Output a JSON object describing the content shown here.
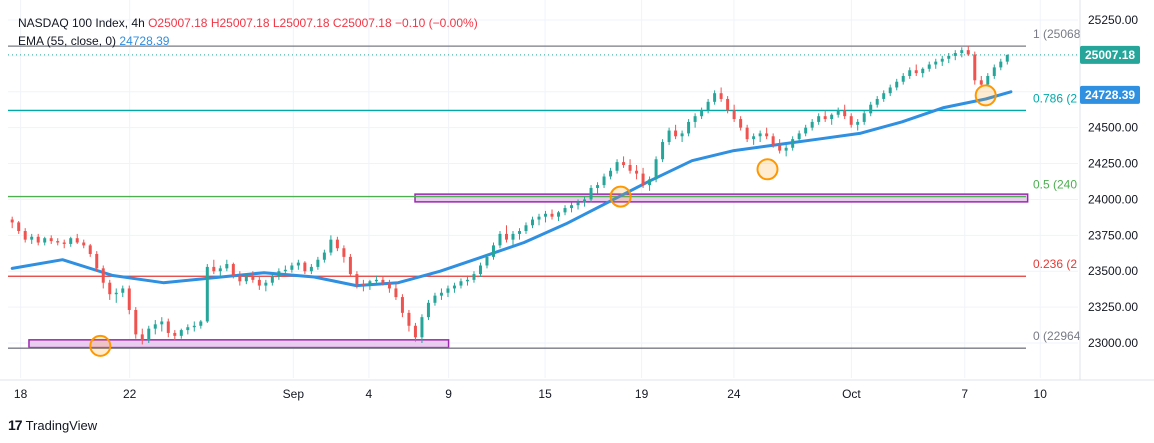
{
  "legend": {
    "title": "NASDAQ 100 Index, 4h",
    "ohlc": "O25007.18 H25007.18 L25007.18 C25007.18 −0.10 (−0.00%)",
    "ema_label": "EMA (55, close, 0)",
    "ema_value": "24728.39"
  },
  "branding": {
    "logo_glyph": "17",
    "name": "TradingView"
  },
  "colors": {
    "up": "#26a69a",
    "down": "#ef5350",
    "ema": "#2f8fe0",
    "fib_1": "#787b86",
    "fib_0786": "#00a8a8",
    "fib_05": "#4caf50",
    "fib_0236": "#e53935",
    "fib_0": "#787b86",
    "zone_fill": "#e9cdef",
    "zone_stroke": "#9c27b0",
    "circle": "#ff9800"
  },
  "chart_data": {
    "type": "candlestick",
    "symbol": "NASDAQ 100 Index",
    "timeframe": "4h",
    "ylim": [
      22750,
      25300
    ],
    "y_ticks": [
      "25250.00",
      "25000.00",
      "24750.00",
      "24500.00",
      "24250.00",
      "24000.00",
      "23750.00",
      "23500.00",
      "23250.00",
      "23000.00"
    ],
    "x_ticks": [
      {
        "label": "18",
        "t": 2
      },
      {
        "label": "22",
        "t": 28
      },
      {
        "label": "Sep",
        "t": 67
      },
      {
        "label": "4",
        "t": 85
      },
      {
        "label": "9",
        "t": 104
      },
      {
        "label": "15",
        "t": 127
      },
      {
        "label": "19",
        "t": 150
      },
      {
        "label": "24",
        "t": 172
      },
      {
        "label": "Oct",
        "t": 200
      },
      {
        "label": "7",
        "t": 227
      },
      {
        "label": "10",
        "t": 245
      }
    ],
    "t_range": [
      -1,
      254
    ],
    "fib_levels": [
      {
        "ratio": "1",
        "value": 25068,
        "label": "1 (25068"
      },
      {
        "ratio": "0.786",
        "value": 24620,
        "label": "0.786 (2"
      },
      {
        "ratio": "0.5",
        "value": 24020,
        "label": "0.5 (240"
      },
      {
        "ratio": "0.236",
        "value": 23465,
        "label": "0.236 (2"
      },
      {
        "ratio": "0",
        "value": 22964,
        "label": "0 (22964"
      }
    ],
    "support_zones": [
      {
        "t_start": 4,
        "t_end": 104,
        "low": 22975,
        "high": 23015
      },
      {
        "t_start": 96,
        "t_end": 242,
        "low": 23990,
        "high": 24030
      }
    ],
    "highlight_circles": [
      {
        "t": 21,
        "value": 22980
      },
      {
        "t": 145,
        "value": 24020
      },
      {
        "t": 180,
        "value": 24210
      },
      {
        "t": 232,
        "value": 24725
      }
    ],
    "last_price": {
      "value": 25007.18,
      "label": "25007.18"
    },
    "ema_label": {
      "value": 24728.39,
      "label": "24728.39"
    },
    "ema_points": [
      [
        0,
        23520
      ],
      [
        12,
        23580
      ],
      [
        24,
        23470
      ],
      [
        36,
        23420
      ],
      [
        48,
        23455
      ],
      [
        60,
        23490
      ],
      [
        72,
        23460
      ],
      [
        82,
        23400
      ],
      [
        92,
        23420
      ],
      [
        102,
        23500
      ],
      [
        112,
        23600
      ],
      [
        122,
        23700
      ],
      [
        132,
        23830
      ],
      [
        142,
        23980
      ],
      [
        152,
        24130
      ],
      [
        162,
        24270
      ],
      [
        172,
        24340
      ],
      [
        182,
        24380
      ],
      [
        192,
        24420
      ],
      [
        202,
        24460
      ],
      [
        212,
        24540
      ],
      [
        222,
        24640
      ],
      [
        232,
        24700
      ],
      [
        238,
        24750
      ]
    ],
    "candles": [
      [
        23860,
        23880,
        23800,
        23840
      ],
      [
        23840,
        23850,
        23760,
        23780
      ],
      [
        23780,
        23800,
        23700,
        23720
      ],
      [
        23720,
        23760,
        23690,
        23740
      ],
      [
        23740,
        23760,
        23680,
        23700
      ],
      [
        23700,
        23740,
        23680,
        23730
      ],
      [
        23730,
        23750,
        23690,
        23710
      ],
      [
        23710,
        23730,
        23680,
        23700
      ],
      [
        23700,
        23720,
        23660,
        23690
      ],
      [
        23690,
        23740,
        23670,
        23730
      ],
      [
        23730,
        23760,
        23690,
        23700
      ],
      [
        23700,
        23720,
        23660,
        23680
      ],
      [
        23680,
        23690,
        23600,
        23620
      ],
      [
        23620,
        23640,
        23500,
        23520
      ],
      [
        23520,
        23540,
        23380,
        23420
      ],
      [
        23420,
        23440,
        23300,
        23340
      ],
      [
        23340,
        23380,
        23280,
        23350
      ],
      [
        23350,
        23400,
        23320,
        23380
      ],
      [
        23380,
        23400,
        23200,
        23230
      ],
      [
        23230,
        23250,
        23030,
        23060
      ],
      [
        23060,
        23100,
        22990,
        23020
      ],
      [
        23020,
        23120,
        23000,
        23100
      ],
      [
        23100,
        23160,
        23060,
        23130
      ],
      [
        23130,
        23180,
        23080,
        23150
      ],
      [
        23150,
        23170,
        23040,
        23070
      ],
      [
        23070,
        23090,
        23020,
        23050
      ],
      [
        23050,
        23100,
        23030,
        23090
      ],
      [
        23090,
        23130,
        23060,
        23110
      ],
      [
        23110,
        23150,
        23080,
        23120
      ],
      [
        23120,
        23160,
        23100,
        23150
      ],
      [
        23150,
        23550,
        23140,
        23530
      ],
      [
        23530,
        23580,
        23480,
        23500
      ],
      [
        23500,
        23540,
        23460,
        23520
      ],
      [
        23520,
        23580,
        23500,
        23550
      ],
      [
        23550,
        23560,
        23450,
        23470
      ],
      [
        23470,
        23500,
        23400,
        23430
      ],
      [
        23430,
        23480,
        23410,
        23460
      ],
      [
        23460,
        23500,
        23420,
        23440
      ],
      [
        23440,
        23470,
        23370,
        23400
      ],
      [
        23400,
        23440,
        23360,
        23420
      ],
      [
        23420,
        23480,
        23400,
        23460
      ],
      [
        23460,
        23520,
        23440,
        23500
      ],
      [
        23500,
        23540,
        23470,
        23510
      ],
      [
        23510,
        23560,
        23490,
        23540
      ],
      [
        23540,
        23580,
        23510,
        23560
      ],
      [
        23560,
        23570,
        23480,
        23500
      ],
      [
        23500,
        23550,
        23480,
        23530
      ],
      [
        23530,
        23600,
        23510,
        23580
      ],
      [
        23580,
        23650,
        23560,
        23630
      ],
      [
        23630,
        23750,
        23610,
        23720
      ],
      [
        23720,
        23740,
        23640,
        23660
      ],
      [
        23660,
        23680,
        23560,
        23600
      ],
      [
        23600,
        23620,
        23460,
        23480
      ],
      [
        23480,
        23500,
        23380,
        23410
      ],
      [
        23410,
        23440,
        23360,
        23400
      ],
      [
        23400,
        23440,
        23370,
        23430
      ],
      [
        23430,
        23470,
        23410,
        23440
      ],
      [
        23440,
        23460,
        23400,
        23420
      ],
      [
        23420,
        23440,
        23350,
        23380
      ],
      [
        23380,
        23420,
        23300,
        23320
      ],
      [
        23320,
        23340,
        23180,
        23210
      ],
      [
        23210,
        23230,
        23080,
        23120
      ],
      [
        23120,
        23140,
        23010,
        23040
      ],
      [
        23040,
        23200,
        23000,
        23180
      ],
      [
        23180,
        23300,
        23160,
        23280
      ],
      [
        23280,
        23350,
        23260,
        23330
      ],
      [
        23330,
        23380,
        23300,
        23350
      ],
      [
        23350,
        23400,
        23320,
        23380
      ],
      [
        23380,
        23420,
        23350,
        23400
      ],
      [
        23400,
        23450,
        23380,
        23430
      ],
      [
        23430,
        23470,
        23400,
        23440
      ],
      [
        23440,
        23500,
        23420,
        23480
      ],
      [
        23480,
        23560,
        23460,
        23540
      ],
      [
        23540,
        23620,
        23520,
        23600
      ],
      [
        23600,
        23700,
        23580,
        23680
      ],
      [
        23680,
        23780,
        23660,
        23760
      ],
      [
        23760,
        23820,
        23700,
        23720
      ],
      [
        23720,
        23780,
        23680,
        23760
      ],
      [
        23760,
        23800,
        23720,
        23780
      ],
      [
        23780,
        23840,
        23760,
        23820
      ],
      [
        23820,
        23880,
        23800,
        23860
      ],
      [
        23860,
        23900,
        23820,
        23880
      ],
      [
        23880,
        23920,
        23840,
        23900
      ],
      [
        23900,
        23930,
        23860,
        23880
      ],
      [
        23880,
        23920,
        23850,
        23910
      ],
      [
        23910,
        23960,
        23890,
        23940
      ],
      [
        23940,
        23980,
        23910,
        23960
      ],
      [
        23960,
        24000,
        23930,
        23980
      ],
      [
        23980,
        24020,
        23950,
        24000
      ],
      [
        24000,
        24100,
        23980,
        24080
      ],
      [
        24080,
        24120,
        24040,
        24100
      ],
      [
        24100,
        24180,
        24080,
        24160
      ],
      [
        24160,
        24220,
        24140,
        24200
      ],
      [
        24200,
        24280,
        24180,
        24260
      ],
      [
        24260,
        24300,
        24220,
        24240
      ],
      [
        24240,
        24280,
        24180,
        24200
      ],
      [
        24200,
        24240,
        24140,
        24180
      ],
      [
        24180,
        24220,
        24080,
        24100
      ],
      [
        24100,
        24160,
        24060,
        24140
      ],
      [
        24140,
        24300,
        24120,
        24280
      ],
      [
        24280,
        24420,
        24260,
        24400
      ],
      [
        24400,
        24500,
        24380,
        24480
      ],
      [
        24480,
        24520,
        24420,
        24440
      ],
      [
        24440,
        24480,
        24400,
        24460
      ],
      [
        24460,
        24560,
        24440,
        24540
      ],
      [
        24540,
        24600,
        24500,
        24580
      ],
      [
        24580,
        24640,
        24560,
        24620
      ],
      [
        24620,
        24700,
        24600,
        24680
      ],
      [
        24680,
        24760,
        24660,
        24740
      ],
      [
        24740,
        24780,
        24680,
        24700
      ],
      [
        24700,
        24720,
        24600,
        24620
      ],
      [
        24620,
        24660,
        24540,
        24560
      ],
      [
        24560,
        24580,
        24480,
        24500
      ],
      [
        24500,
        24520,
        24400,
        24420
      ],
      [
        24420,
        24460,
        24380,
        24440
      ],
      [
        24440,
        24480,
        24400,
        24460
      ],
      [
        24460,
        24500,
        24420,
        24440
      ],
      [
        24440,
        24460,
        24360,
        24380
      ],
      [
        24380,
        24420,
        24320,
        24340
      ],
      [
        24340,
        24380,
        24300,
        24360
      ],
      [
        24360,
        24440,
        24340,
        24420
      ],
      [
        24420,
        24480,
        24400,
        24460
      ],
      [
        24460,
        24520,
        24440,
        24500
      ],
      [
        24500,
        24560,
        24480,
        24540
      ],
      [
        24540,
        24600,
        24520,
        24580
      ],
      [
        24580,
        24620,
        24540,
        24560
      ],
      [
        24560,
        24600,
        24520,
        24590
      ],
      [
        24590,
        24640,
        24570,
        24620
      ],
      [
        24620,
        24660,
        24560,
        24580
      ],
      [
        24580,
        24600,
        24500,
        24520
      ],
      [
        24520,
        24560,
        24480,
        24540
      ],
      [
        24540,
        24620,
        24520,
        24600
      ],
      [
        24600,
        24680,
        24580,
        24660
      ],
      [
        24660,
        24720,
        24640,
        24700
      ],
      [
        24700,
        24760,
        24680,
        24740
      ],
      [
        24740,
        24800,
        24720,
        24780
      ],
      [
        24780,
        24840,
        24760,
        24820
      ],
      [
        24820,
        24880,
        24800,
        24860
      ],
      [
        24860,
        24920,
        24840,
        24900
      ],
      [
        24900,
        24940,
        24860,
        24880
      ],
      [
        24880,
        24920,
        24850,
        24910
      ],
      [
        24910,
        24960,
        24890,
        24940
      ],
      [
        24940,
        24980,
        24910,
        24960
      ],
      [
        24960,
        25000,
        24930,
        24980
      ],
      [
        24980,
        25020,
        24950,
        25000
      ],
      [
        25000,
        25040,
        24970,
        25020
      ],
      [
        25020,
        25060,
        24990,
        25040
      ],
      [
        25040,
        25068,
        25000,
        25010
      ],
      [
        25010,
        25030,
        24800,
        24830
      ],
      [
        24830,
        24860,
        24780,
        24800
      ],
      [
        24800,
        24880,
        24790,
        24860
      ],
      [
        24860,
        24940,
        24840,
        24920
      ],
      [
        24920,
        24980,
        24900,
        24960
      ],
      [
        24960,
        25010,
        24940,
        25007
      ]
    ]
  }
}
